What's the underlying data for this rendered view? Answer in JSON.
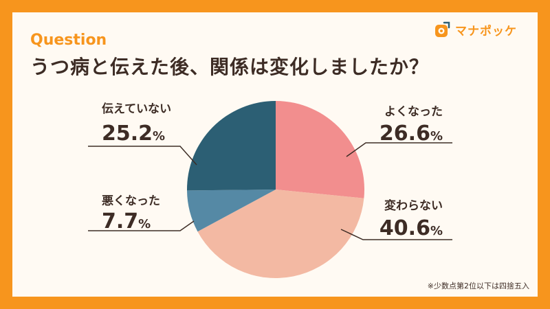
{
  "header": {
    "question_label": "Question",
    "title": "うつ病と伝えた後、関係は変化しましたか？"
  },
  "brand": {
    "name": "マナポッケ"
  },
  "footnote": "※少数点第2位以下は四捨五入",
  "colors": {
    "frame": "#f7951d",
    "background": "#fffaf3",
    "text": "#3d2c25",
    "slice_better": "#f28e8e",
    "slice_same": "#f3b9a3",
    "slice_worse": "#5589a5",
    "slice_not_told": "#2c5f74"
  },
  "chart_data": {
    "type": "pie",
    "unit": "%",
    "slices": [
      {
        "label": "よくなった",
        "value": 26.6,
        "color": "#f28e8e"
      },
      {
        "label": "変わらない",
        "value": 40.6,
        "color": "#f3b9a3"
      },
      {
        "label": "悪くなった",
        "value": 7.7,
        "color": "#5589a5"
      },
      {
        "label": "伝えていない",
        "value": 25.2,
        "color": "#2c5f74"
      }
    ]
  }
}
